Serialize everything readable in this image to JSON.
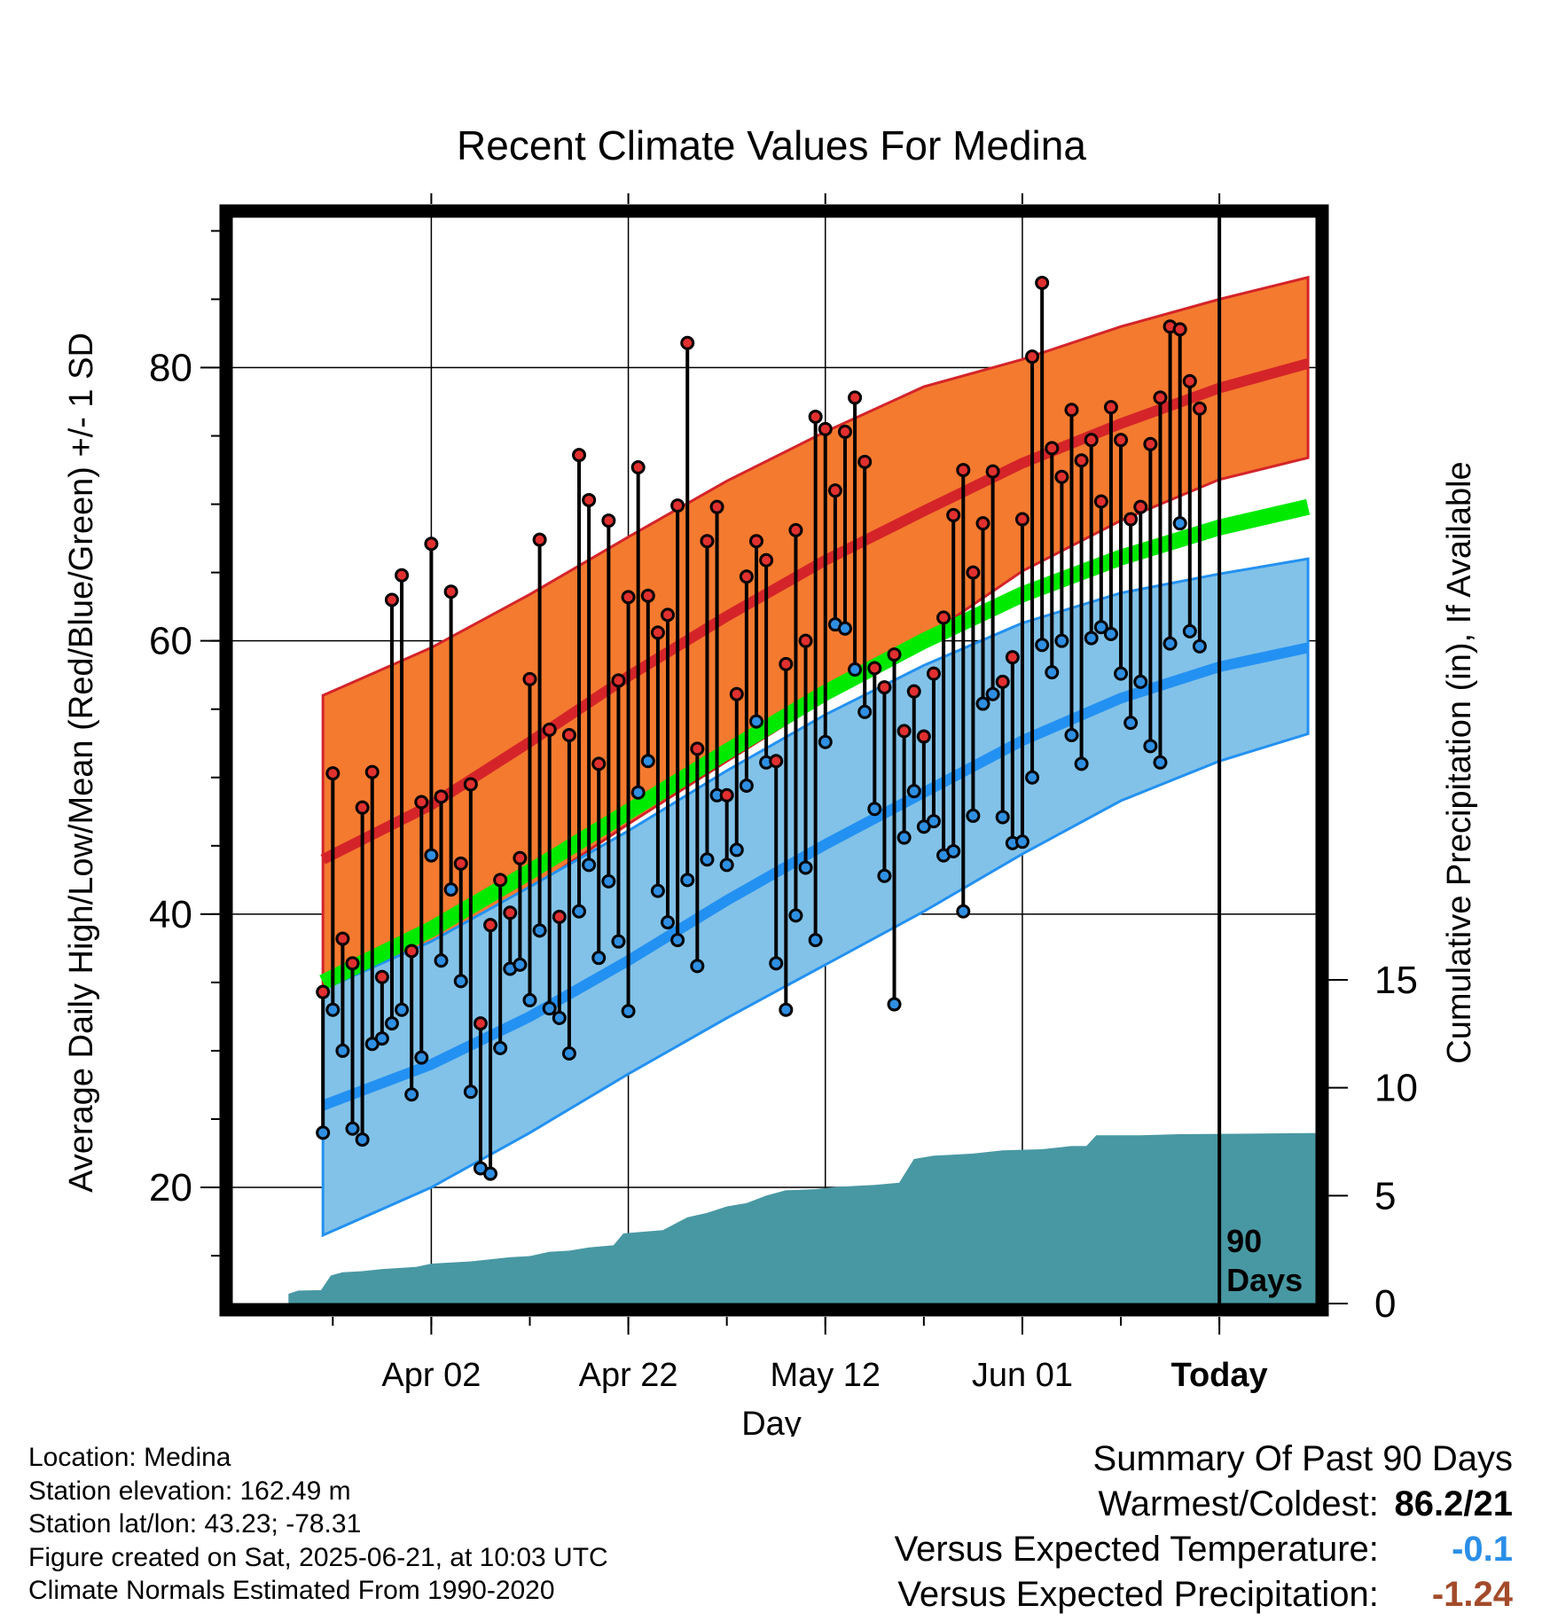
{
  "title": "Recent Climate Values For Medina",
  "xlabel": "Day",
  "ylabel_left": "Average Daily High/Low/Mean (Red/Blue/Green) +/- 1 SD",
  "ylabel_right": "Cumulative Precipitation (in), If Available",
  "today_marker": "90\nDays",
  "chart_data": {
    "type": "line",
    "x_unit": "day index (0 = Mar 23)",
    "x_ticks": [
      {
        "day": 10,
        "label": "Apr 02"
      },
      {
        "day": 30,
        "label": "Apr 22"
      },
      {
        "day": 50,
        "label": "May 12"
      },
      {
        "day": 70,
        "label": "Jun 01"
      },
      {
        "day": 90,
        "label": "Today"
      }
    ],
    "xlim": [
      -10.2,
      99.8
    ],
    "temp_axis": {
      "ylim": [
        11.5,
        91
      ],
      "ticks": [
        20,
        40,
        60,
        80
      ]
    },
    "precip_axis": {
      "ylim": [
        0,
        15
      ],
      "ticks": [
        0,
        5,
        10,
        15
      ]
    },
    "normals": {
      "days": [
        -1,
        10,
        20,
        30,
        40,
        50,
        60,
        70,
        80,
        90,
        99
      ],
      "high_mean": [
        44,
        48,
        52.6,
        57.4,
        61.8,
        65.9,
        69.5,
        73,
        75.9,
        78.5,
        80.3
      ],
      "high_upper": [
        56,
        59.5,
        63.4,
        67.6,
        71.7,
        75.3,
        78.6,
        80.6,
        83,
        85,
        86.6
      ],
      "high_lower": [
        33.5,
        37.5,
        41.8,
        46.6,
        51.2,
        55.7,
        60.2,
        65.1,
        68.8,
        71.8,
        73.4
      ],
      "mean_mean": [
        35,
        38.9,
        43.1,
        47.5,
        51.9,
        56.2,
        60,
        63.4,
        66.1,
        68.3,
        69.8
      ],
      "low_mean": [
        26,
        29,
        32.5,
        36.6,
        41,
        45.1,
        48.9,
        52.7,
        55.8,
        58.1,
        59.5
      ],
      "low_upper": [
        34.5,
        38,
        42,
        46.1,
        50.5,
        54.6,
        58.2,
        61.3,
        63.5,
        64.9,
        66
      ],
      "low_lower": [
        16.5,
        20,
        24,
        28.3,
        32.4,
        36.3,
        40.2,
        44.4,
        48.3,
        51.2,
        53.2
      ]
    },
    "daily": [
      {
        "day": -1,
        "high": 34.3,
        "low": 24
      },
      {
        "day": 0,
        "high": 50.3,
        "low": 33
      },
      {
        "day": 1,
        "high": 38.2,
        "low": 30
      },
      {
        "day": 2,
        "high": 36.4,
        "low": 24.3
      },
      {
        "day": 3,
        "high": 47.8,
        "low": 23.5
      },
      {
        "day": 4,
        "high": 50.4,
        "low": 30.5
      },
      {
        "day": 5,
        "high": 35.4,
        "low": 30.9
      },
      {
        "day": 6,
        "high": 63,
        "low": 32
      },
      {
        "day": 7,
        "high": 64.8,
        "low": 33
      },
      {
        "day": 8,
        "high": 37.3,
        "low": 26.8
      },
      {
        "day": 9,
        "high": 48.2,
        "low": 29.5
      },
      {
        "day": 10,
        "high": 67.1,
        "low": 44.3
      },
      {
        "day": 11,
        "high": 48.6,
        "low": 36.6
      },
      {
        "day": 12,
        "high": 63.6,
        "low": 41.8
      },
      {
        "day": 13,
        "high": 43.7,
        "low": 35.1
      },
      {
        "day": 14,
        "high": 49.5,
        "low": 27
      },
      {
        "day": 15,
        "high": 32,
        "low": 21.4
      },
      {
        "day": 16,
        "high": 39.2,
        "low": 21
      },
      {
        "day": 17,
        "high": 42.5,
        "low": 30.2
      },
      {
        "day": 18,
        "high": 40.1,
        "low": 36
      },
      {
        "day": 19,
        "high": 44.1,
        "low": 36.3
      },
      {
        "day": 20,
        "high": 57.2,
        "low": 33.7
      },
      {
        "day": 21,
        "high": 67.4,
        "low": 38.8
      },
      {
        "day": 22,
        "high": 53.5,
        "low": 33.1
      },
      {
        "day": 23,
        "high": 39.8,
        "low": 32.4
      },
      {
        "day": 24,
        "high": 53.1,
        "low": 29.8
      },
      {
        "day": 25,
        "high": 73.6,
        "low": 40.2
      },
      {
        "day": 26,
        "high": 70.3,
        "low": 43.6
      },
      {
        "day": 27,
        "high": 51,
        "low": 36.8
      },
      {
        "day": 28,
        "high": 68.8,
        "low": 42.4
      },
      {
        "day": 29,
        "high": 57.1,
        "low": 38
      },
      {
        "day": 30,
        "high": 63.2,
        "low": 32.9
      },
      {
        "day": 31,
        "high": 72.7,
        "low": 48.9
      },
      {
        "day": 32,
        "high": 63.3,
        "low": 51.2
      },
      {
        "day": 33,
        "high": 60.6,
        "low": 41.7
      },
      {
        "day": 34,
        "high": 61.9,
        "low": 39.4
      },
      {
        "day": 35,
        "high": 69.9,
        "low": 38.1
      },
      {
        "day": 36,
        "high": 81.8,
        "low": 42.5
      },
      {
        "day": 37,
        "high": 52.1,
        "low": 36.2
      },
      {
        "day": 38,
        "high": 67.3,
        "low": 44
      },
      {
        "day": 39,
        "high": 69.8,
        "low": 48.7
      },
      {
        "day": 40,
        "high": 48.7,
        "low": 43.6
      },
      {
        "day": 41,
        "high": 56.1,
        "low": 44.7
      },
      {
        "day": 42,
        "high": 64.7,
        "low": 49.4
      },
      {
        "day": 43,
        "high": 67.3,
        "low": 54.1
      },
      {
        "day": 44,
        "high": 65.9,
        "low": 51.1
      },
      {
        "day": 45,
        "high": 51.2,
        "low": 36.4
      },
      {
        "day": 46,
        "high": 58.3,
        "low": 33
      },
      {
        "day": 47,
        "high": 68.1,
        "low": 39.9
      },
      {
        "day": 48,
        "high": 60,
        "low": 43.4
      },
      {
        "day": 49,
        "high": 76.4,
        "low": 38.1
      },
      {
        "day": 50,
        "high": 75.5,
        "low": 52.6
      },
      {
        "day": 51,
        "high": 71,
        "low": 61.2
      },
      {
        "day": 52,
        "high": 75.3,
        "low": 60.9
      },
      {
        "day": 53,
        "high": 77.8,
        "low": 57.9
      },
      {
        "day": 54,
        "high": 73.1,
        "low": 54.8
      },
      {
        "day": 55,
        "high": 58,
        "low": 47.7
      },
      {
        "day": 56,
        "high": 56.6,
        "low": 42.8
      },
      {
        "day": 57,
        "high": 59,
        "low": 33.4
      },
      {
        "day": 58,
        "high": 53.4,
        "low": 45.6
      },
      {
        "day": 59,
        "high": 56.3,
        "low": 49
      },
      {
        "day": 60,
        "high": 53,
        "low": 46.4
      },
      {
        "day": 61,
        "high": 57.6,
        "low": 46.8
      },
      {
        "day": 62,
        "high": 61.7,
        "low": 44.3
      },
      {
        "day": 63,
        "high": 69.2,
        "low": 44.6
      },
      {
        "day": 64,
        "high": 72.5,
        "low": 40.2
      },
      {
        "day": 65,
        "high": 65,
        "low": 47.2
      },
      {
        "day": 66,
        "high": 68.6,
        "low": 55.4
      },
      {
        "day": 67,
        "high": 72.4,
        "low": 56.1
      },
      {
        "day": 68,
        "high": 57,
        "low": 47.1
      },
      {
        "day": 69,
        "high": 58.8,
        "low": 45.2
      },
      {
        "day": 70,
        "high": 68.9,
        "low": 45.3
      },
      {
        "day": 71,
        "high": 80.8,
        "low": 50
      },
      {
        "day": 72,
        "high": 86.2,
        "low": 59.7
      },
      {
        "day": 73,
        "high": 74.1,
        "low": 57.7
      },
      {
        "day": 74,
        "high": 72,
        "low": 60
      },
      {
        "day": 75,
        "high": 76.9,
        "low": 53.1
      },
      {
        "day": 76,
        "high": 73.2,
        "low": 51
      },
      {
        "day": 77,
        "high": 74.7,
        "low": 60.2
      },
      {
        "day": 78,
        "high": 70.2,
        "low": 61
      },
      {
        "day": 79,
        "high": 77.1,
        "low": 60.5
      },
      {
        "day": 80,
        "high": 74.7,
        "low": 57.6
      },
      {
        "day": 81,
        "high": 68.9,
        "low": 54
      },
      {
        "day": 82,
        "high": 69.8,
        "low": 57
      },
      {
        "day": 83,
        "high": 74.4,
        "low": 52.3
      },
      {
        "day": 84,
        "high": 77.8,
        "low": 51.1
      },
      {
        "day": 85,
        "high": 83,
        "low": 59.8
      },
      {
        "day": 86,
        "high": 82.8,
        "low": 68.6
      },
      {
        "day": 87,
        "high": 79,
        "low": 60.7
      },
      {
        "day": 88,
        "high": 77,
        "low": 59.6
      }
    ],
    "cumulative_precip": [
      {
        "day": -4.5,
        "value": 0
      },
      {
        "day": -4.5,
        "value": 0.45
      },
      {
        "day": -3.5,
        "value": 0.6
      },
      {
        "day": -1.2,
        "value": 0.62
      },
      {
        "day": -0.2,
        "value": 1.3
      },
      {
        "day": 1,
        "value": 1.45
      },
      {
        "day": 3,
        "value": 1.5
      },
      {
        "day": 5,
        "value": 1.6
      },
      {
        "day": 7,
        "value": 1.65
      },
      {
        "day": 8.5,
        "value": 1.7
      },
      {
        "day": 10,
        "value": 1.85
      },
      {
        "day": 12,
        "value": 1.9
      },
      {
        "day": 14,
        "value": 1.95
      },
      {
        "day": 16,
        "value": 2.05
      },
      {
        "day": 18,
        "value": 2.15
      },
      {
        "day": 20,
        "value": 2.2
      },
      {
        "day": 22,
        "value": 2.4
      },
      {
        "day": 24,
        "value": 2.45
      },
      {
        "day": 26,
        "value": 2.6
      },
      {
        "day": 28.5,
        "value": 2.7
      },
      {
        "day": 29.5,
        "value": 3.25
      },
      {
        "day": 33.5,
        "value": 3.4
      },
      {
        "day": 36,
        "value": 4.0
      },
      {
        "day": 38,
        "value": 4.2
      },
      {
        "day": 40,
        "value": 4.5
      },
      {
        "day": 42,
        "value": 4.65
      },
      {
        "day": 44,
        "value": 5.0
      },
      {
        "day": 46,
        "value": 5.25
      },
      {
        "day": 49,
        "value": 5.3
      },
      {
        "day": 51,
        "value": 5.4
      },
      {
        "day": 53,
        "value": 5.45
      },
      {
        "day": 55,
        "value": 5.5
      },
      {
        "day": 57.5,
        "value": 5.6
      },
      {
        "day": 59,
        "value": 6.7
      },
      {
        "day": 61,
        "value": 6.85
      },
      {
        "day": 63,
        "value": 6.9
      },
      {
        "day": 65,
        "value": 6.95
      },
      {
        "day": 68,
        "value": 7.1
      },
      {
        "day": 72,
        "value": 7.15
      },
      {
        "day": 75,
        "value": 7.3
      },
      {
        "day": 76.5,
        "value": 7.3
      },
      {
        "day": 77.5,
        "value": 7.8
      },
      {
        "day": 82,
        "value": 7.8
      },
      {
        "day": 86,
        "value": 7.85
      },
      {
        "day": 99.3,
        "value": 7.9
      }
    ]
  },
  "colors": {
    "high_band": "#f47a2f",
    "high_mean": "#d42429",
    "low_band": "#82c2e8",
    "low_mean": "#2391f2",
    "mean_line": "#00ea00",
    "precip": "#4898a3",
    "high_dot": "#e0302f",
    "low_dot": "#2f8fe2",
    "temp_anomaly": "#2b8ee8",
    "precip_anomaly": "#a34b2a"
  },
  "footer": {
    "location": "Location: Medina",
    "elevation": "Station elevation: 162.49 m",
    "latlon": "Station lat/lon: 43.23; -78.31",
    "created": "Figure created on Sat, 2025-06-21, at 10:03 UTC",
    "normals": "Climate Normals Estimated From 1990-2020"
  },
  "summary": {
    "heading": "Summary Of Past 90 Days",
    "warm_cold_label": "Warmest/Coldest:",
    "warm_cold_value": "86.2/21",
    "temp_label": "Versus Expected Temperature:",
    "temp_value": "-0.1",
    "precip_label": "Versus Expected Precipitation:",
    "precip_value": "-1.24"
  }
}
